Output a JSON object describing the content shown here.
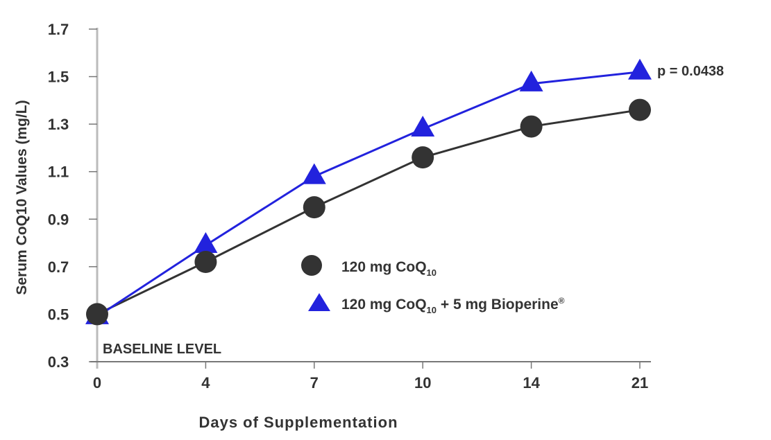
{
  "chart_data": {
    "type": "line",
    "title": "",
    "xlabel": "Days of Supplementation",
    "ylabel": "Serum CoQ10 Values (mg/L)",
    "categories": [
      "0",
      "4",
      "7",
      "10",
      "14",
      "21"
    ],
    "ylim": [
      0.3,
      1.7
    ],
    "yticks": [
      "0.3",
      "0.5",
      "0.7",
      "0.9",
      "1.1",
      "1.3",
      "1.5",
      "1.7"
    ],
    "grid": false,
    "legend_placement": "center",
    "series": [
      {
        "name": "120 mg CoQ",
        "name_sub": "10",
        "name_tail": "",
        "marker": "circle",
        "color": "#333333",
        "values": [
          0.5,
          0.72,
          0.95,
          1.16,
          1.29,
          1.36
        ]
      },
      {
        "name": "120 mg CoQ",
        "name_sub": "10",
        "name_tail": " + 5 mg Bioperine",
        "name_sup": "®",
        "marker": "triangle",
        "color": "#2222dd",
        "values": [
          0.49,
          0.79,
          1.08,
          1.28,
          1.47,
          1.52
        ]
      }
    ],
    "annotations": {
      "baseline": "BASELINE LEVEL",
      "p_value": "p = 0.0438"
    }
  }
}
